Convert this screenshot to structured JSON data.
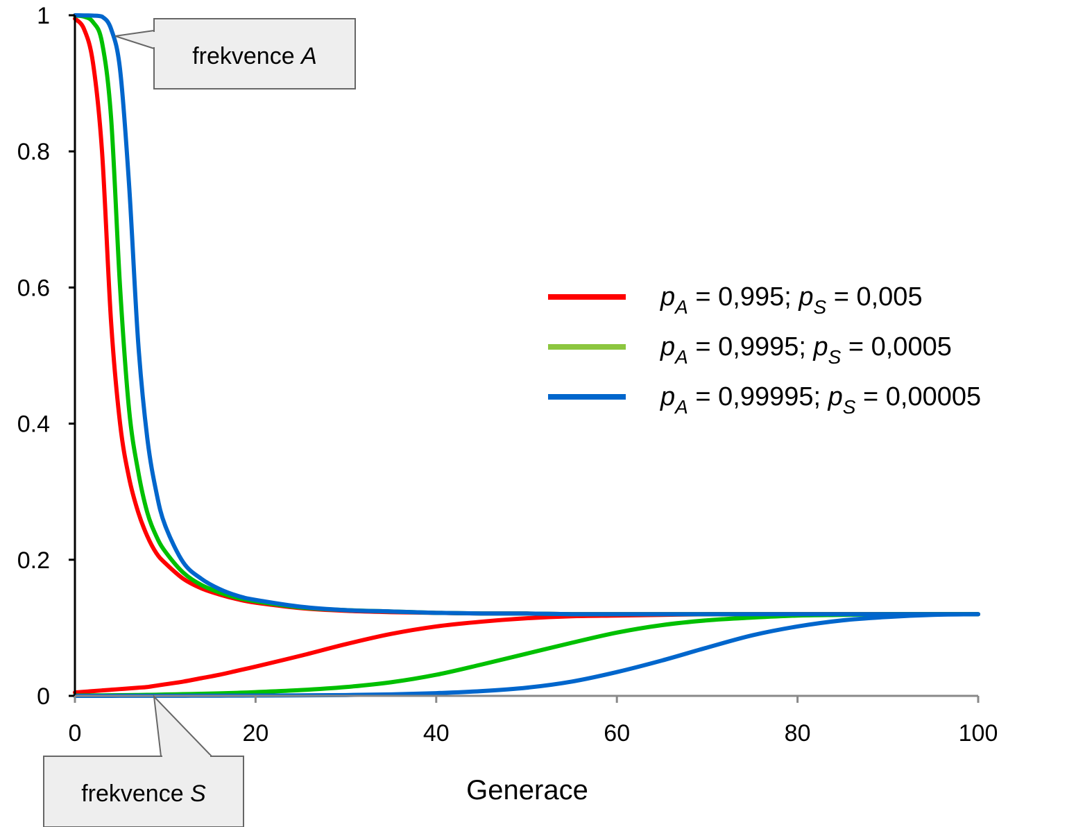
{
  "chart_data": {
    "type": "line",
    "title": "",
    "xlabel": "Generace",
    "ylabel": "",
    "xlim": [
      0,
      100
    ],
    "ylim": [
      0,
      1
    ],
    "x_ticks": [
      0,
      20,
      40,
      60,
      80,
      100
    ],
    "y_ticks": [
      0,
      0.2,
      0.4,
      0.6,
      0.8,
      1
    ],
    "x_tick_labels": [
      "0",
      "20",
      "40",
      "60",
      "80",
      "100"
    ],
    "y_tick_labels": [
      "0",
      "0.2",
      "0.4",
      "0.6",
      "0.8",
      "1"
    ],
    "grid": false,
    "legend_position": "right",
    "x": [
      0,
      1,
      2,
      3,
      4,
      5,
      6,
      7,
      8,
      9,
      10,
      12,
      14,
      16,
      18,
      20,
      25,
      30,
      35,
      40,
      45,
      50,
      55,
      60,
      65,
      70,
      75,
      80,
      85,
      90,
      95,
      100
    ],
    "series": [
      {
        "name": "p_A = 0,995; p_S = 0,005",
        "legend": {
          "p1": "p",
          "s1": "A",
          "eq1": " = 0,995; ",
          "p2": "p",
          "s2": "S",
          "eq2": " = 0,005"
        },
        "color": "#ff0000",
        "lines": [
          {
            "label": "frekvence A",
            "values": [
              0.995,
              0.98,
              0.93,
              0.8,
              0.55,
              0.4,
              0.32,
              0.27,
              0.235,
              0.21,
              0.195,
              0.172,
              0.158,
              0.149,
              0.142,
              0.137,
              0.129,
              0.125,
              0.123,
              0.122,
              0.121,
              0.121,
              0.12,
              0.12,
              0.12,
              0.12,
              0.12,
              0.12,
              0.12,
              0.12,
              0.12,
              0.12
            ]
          },
          {
            "label": "frekvence S",
            "values": [
              0.005,
              0.006,
              0.007,
              0.008,
              0.009,
              0.01,
              0.011,
              0.012,
              0.013,
              0.015,
              0.017,
              0.021,
              0.026,
              0.031,
              0.037,
              0.043,
              0.059,
              0.076,
              0.091,
              0.102,
              0.109,
              0.114,
              0.117,
              0.118,
              0.119,
              0.12,
              0.12,
              0.12,
              0.12,
              0.12,
              0.12,
              0.12
            ]
          }
        ]
      },
      {
        "name": "p_A = 0,9995; p_S = 0,0005",
        "legend": {
          "p1": "p",
          "s1": "A",
          "eq1": " = 0,9995; ",
          "p2": "p",
          "s2": "S",
          "eq2": " = 0,0005"
        },
        "color": "#00c000",
        "legend_color": "#8cc63f",
        "lines": [
          {
            "label": "frekvence A",
            "values": [
              0.9995,
              0.998,
              0.99,
              0.96,
              0.85,
              0.6,
              0.42,
              0.33,
              0.27,
              0.235,
              0.212,
              0.181,
              0.163,
              0.152,
              0.144,
              0.139,
              0.13,
              0.126,
              0.124,
              0.122,
              0.121,
              0.121,
              0.12,
              0.12,
              0.12,
              0.12,
              0.12,
              0.12,
              0.12,
              0.12,
              0.12,
              0.12
            ]
          },
          {
            "label": "frekvence S",
            "values": [
              0.0005,
              0.0006,
              0.0007,
              0.0008,
              0.0009,
              0.001,
              0.0011,
              0.0013,
              0.0015,
              0.0017,
              0.002,
              0.0025,
              0.003,
              0.0037,
              0.0045,
              0.0055,
              0.0085,
              0.013,
              0.02,
              0.031,
              0.046,
              0.062,
              0.078,
              0.093,
              0.104,
              0.111,
              0.115,
              0.118,
              0.119,
              0.12,
              0.12,
              0.12
            ]
          }
        ]
      },
      {
        "name": "p_A = 0,99995; p_S = 0,00005",
        "legend": {
          "p1": "p",
          "s1": "A",
          "eq1": " = 0,99995; ",
          "p2": "p",
          "s2": "S",
          "eq2": " = 0,00005"
        },
        "color": "#0066cc",
        "lines": [
          {
            "label": "frekvence A",
            "values": [
              0.99995,
              0.9998,
              0.9995,
              0.998,
              0.98,
              0.92,
              0.75,
              0.52,
              0.38,
              0.3,
              0.25,
              0.196,
              0.172,
              0.157,
              0.147,
              0.141,
              0.131,
              0.126,
              0.124,
              0.122,
              0.121,
              0.121,
              0.12,
              0.12,
              0.12,
              0.12,
              0.12,
              0.12,
              0.12,
              0.12,
              0.12,
              0.12
            ]
          },
          {
            "label": "frekvence S",
            "values": [
              5e-05,
              5e-05,
              5e-05,
              6e-05,
              6e-05,
              7e-05,
              8e-05,
              9e-05,
              0.0001,
              0.00012,
              0.00014,
              0.00018,
              0.00024,
              0.0003,
              0.0004,
              0.0005,
              0.0008,
              0.0012,
              0.0022,
              0.004,
              0.007,
              0.012,
              0.021,
              0.035,
              0.052,
              0.071,
              0.089,
              0.102,
              0.111,
              0.116,
              0.119,
              0.12
            ]
          }
        ]
      }
    ],
    "annotations": [
      {
        "prefix": "frekvence ",
        "italic": "A",
        "points_to_series_line": "frekvence A"
      },
      {
        "prefix": "frekvence ",
        "italic": "S",
        "points_to_series_line": "frekvence S"
      }
    ]
  }
}
